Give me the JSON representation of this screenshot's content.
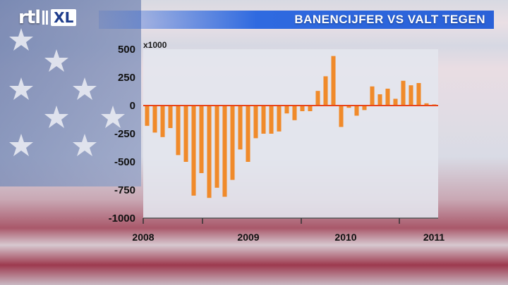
{
  "header": {
    "logo_text": "rtl",
    "logo_badge": "XL",
    "title": "BANENCIJFER VS VALT TEGEN"
  },
  "colors": {
    "bar": "#f08a2a",
    "title_bar": "#2f6ae0",
    "plot_bg": "#e4e6ee"
  },
  "chart_data": {
    "type": "bar",
    "unit_label": "x1000",
    "ylim": [
      -1000,
      500
    ],
    "yticks": [
      500,
      250,
      0,
      -250,
      -500,
      -750,
      -1000
    ],
    "ytick_labels": [
      "500",
      "250",
      "0",
      "-250",
      "-500",
      "-750",
      "-1000"
    ],
    "xticks": [
      "2008",
      "2009",
      "2010",
      "2011"
    ],
    "grid": false,
    "values": [
      -180,
      -240,
      -280,
      -200,
      -440,
      -500,
      -800,
      -600,
      -820,
      -730,
      -810,
      -660,
      -390,
      -500,
      -290,
      -250,
      -250,
      -230,
      -70,
      -130,
      -50,
      -50,
      130,
      260,
      440,
      -190,
      -20,
      -90,
      -40,
      170,
      100,
      150,
      60,
      220,
      180,
      200,
      20,
      10
    ]
  }
}
